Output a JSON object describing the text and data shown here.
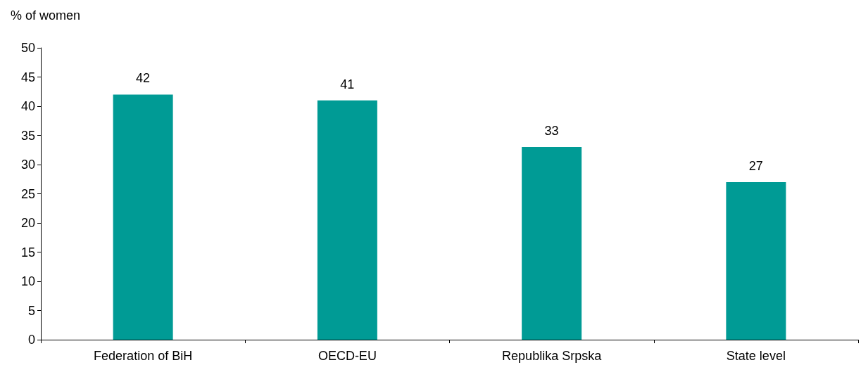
{
  "chart_data": {
    "type": "bar",
    "ylabel": "% of women",
    "categories": [
      "Federation of BiH",
      "OECD-EU",
      "Republika Srpska",
      "State level"
    ],
    "values": [
      42,
      41,
      33,
      27
    ],
    "colors": [
      "#009b95",
      "#009b95",
      "#009b95",
      "#009b95"
    ],
    "ylim": [
      0,
      50
    ],
    "yticks": [
      0,
      5,
      10,
      15,
      20,
      25,
      30,
      35,
      40,
      45,
      50
    ],
    "data_labels": true,
    "grid": false
  }
}
